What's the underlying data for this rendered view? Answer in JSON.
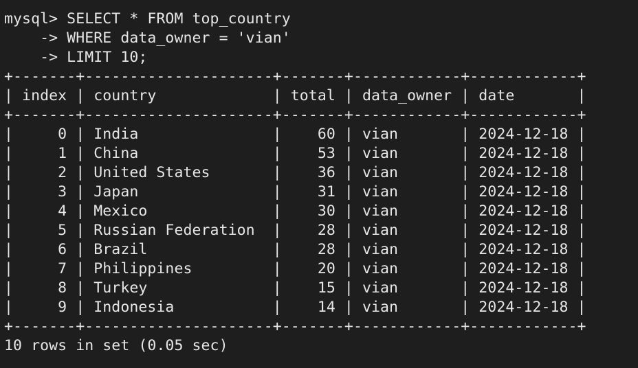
{
  "terminal": {
    "query_lines": [
      "mysql> SELECT * FROM top_country",
      "    -> WHERE data_owner = 'vian'",
      "    -> LIMIT 10;"
    ],
    "border_line": "+-------+---------------------+-------+------------+------------+",
    "header_line": "| index | country             | total | data_owner | date       |",
    "table": {
      "columns": [
        "index",
        "country",
        "total",
        "data_owner",
        "date"
      ],
      "rows": [
        [
          "0",
          "India",
          "60",
          "vian",
          "2024-12-18"
        ],
        [
          "1",
          "China",
          "53",
          "vian",
          "2024-12-18"
        ],
        [
          "2",
          "United States",
          "36",
          "vian",
          "2024-12-18"
        ],
        [
          "3",
          "Japan",
          "31",
          "vian",
          "2024-12-18"
        ],
        [
          "4",
          "Mexico",
          "30",
          "vian",
          "2024-12-18"
        ],
        [
          "5",
          "Russian Federation",
          "28",
          "vian",
          "2024-12-18"
        ],
        [
          "6",
          "Brazil",
          "28",
          "vian",
          "2024-12-18"
        ],
        [
          "7",
          "Philippines",
          "20",
          "vian",
          "2024-12-18"
        ],
        [
          "8",
          "Turkey",
          "15",
          "vian",
          "2024-12-18"
        ],
        [
          "9",
          "Indonesia",
          "14",
          "vian",
          "2024-12-18"
        ]
      ]
    },
    "row_lines": [
      "|     0 | India               |    60 | vian       | 2024-12-18 |",
      "|     1 | China               |    53 | vian       | 2024-12-18 |",
      "|     2 | United States       |    36 | vian       | 2024-12-18 |",
      "|     3 | Japan               |    31 | vian       | 2024-12-18 |",
      "|     4 | Mexico              |    30 | vian       | 2024-12-18 |",
      "|     5 | Russian Federation  |    28 | vian       | 2024-12-18 |",
      "|     6 | Brazil              |    28 | vian       | 2024-12-18 |",
      "|     7 | Philippines         |    20 | vian       | 2024-12-18 |",
      "|     8 | Turkey              |    15 | vian       | 2024-12-18 |",
      "|     9 | Indonesia           |    14 | vian       | 2024-12-18 |"
    ],
    "result_summary": "10 rows in set (0.05 sec)",
    "colors": {
      "background": "#1e1e1e",
      "text": "#e6e6e6"
    }
  }
}
